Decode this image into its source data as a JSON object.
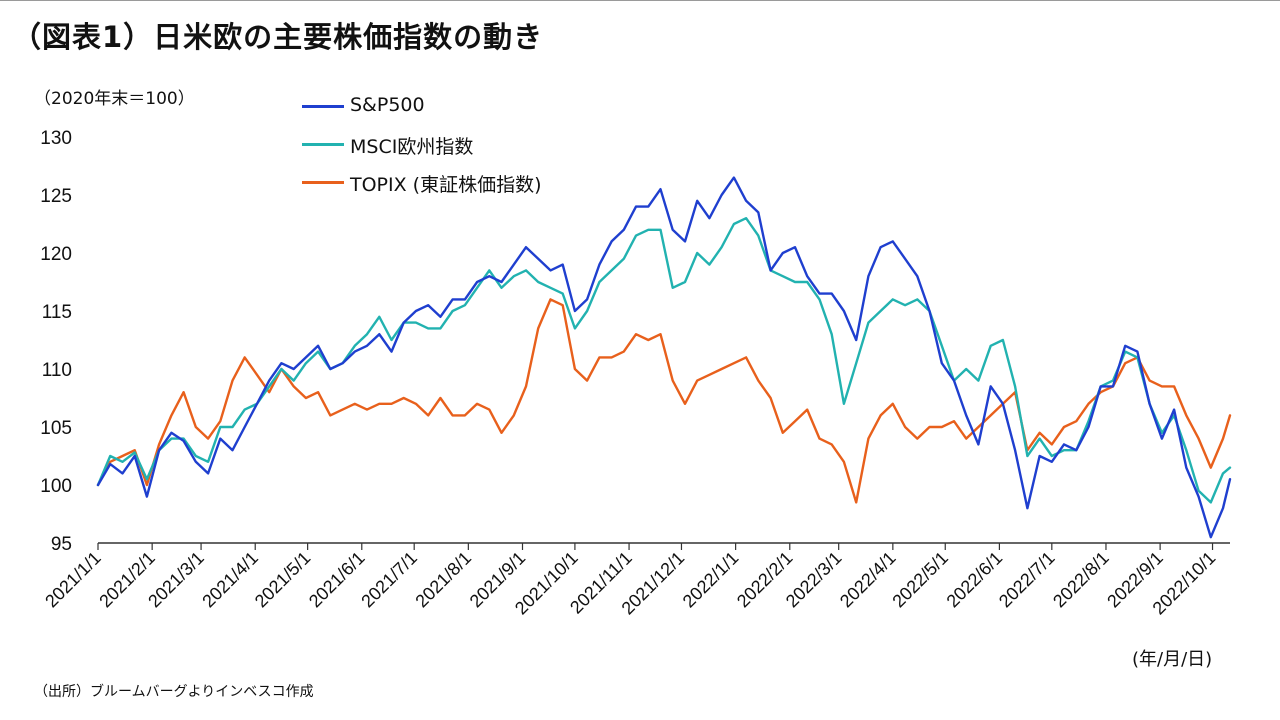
{
  "title": "（図表1）日米欧の主要株価指数の動き",
  "y_note": "（2020年末＝100）",
  "x_unit": "(年/月/日)",
  "source": "（出所）ブルームバーグよりインベスコ作成",
  "chart_data": {
    "type": "line",
    "ylim": [
      95,
      130
    ],
    "yticks": [
      95,
      100,
      105,
      110,
      115,
      120,
      125,
      130
    ],
    "x_range": [
      "2021/1/1",
      "2022/10/11"
    ],
    "xticks": [
      "2021/1/1",
      "2021/2/1",
      "2021/3/1",
      "2021/4/1",
      "2021/5/1",
      "2021/6/1",
      "2021/7/1",
      "2021/8/1",
      "2021/9/1",
      "2021/10/1",
      "2021/11/1",
      "2021/12/1",
      "2022/1/1",
      "2022/2/1",
      "2022/3/1",
      "2022/4/1",
      "2022/5/1",
      "2022/6/1",
      "2022/7/1",
      "2022/8/1",
      "2022/9/1",
      "2022/10/1"
    ],
    "legend_position": "top-left",
    "series": [
      {
        "name": "S&P500",
        "color": "#1f3fcf",
        "points": [
          [
            "2021/1/1",
            100
          ],
          [
            "2021/1/8",
            101.8
          ],
          [
            "2021/1/15",
            101
          ],
          [
            "2021/1/22",
            102.5
          ],
          [
            "2021/1/29",
            99
          ],
          [
            "2021/2/5",
            103
          ],
          [
            "2021/2/12",
            104.5
          ],
          [
            "2021/2/19",
            103.8
          ],
          [
            "2021/2/26",
            102
          ],
          [
            "2021/3/5",
            101
          ],
          [
            "2021/3/12",
            104
          ],
          [
            "2021/3/19",
            103
          ],
          [
            "2021/3/26",
            105
          ],
          [
            "2021/4/2",
            107
          ],
          [
            "2021/4/9",
            109
          ],
          [
            "2021/4/16",
            110.5
          ],
          [
            "2021/4/23",
            110
          ],
          [
            "2021/4/30",
            111
          ],
          [
            "2021/5/7",
            112
          ],
          [
            "2021/5/14",
            110
          ],
          [
            "2021/5/21",
            110.5
          ],
          [
            "2021/5/28",
            111.5
          ],
          [
            "2021/6/4",
            112
          ],
          [
            "2021/6/11",
            113
          ],
          [
            "2021/6/18",
            111.5
          ],
          [
            "2021/6/25",
            114
          ],
          [
            "2021/7/2",
            115
          ],
          [
            "2021/7/9",
            115.5
          ],
          [
            "2021/7/16",
            114.5
          ],
          [
            "2021/7/23",
            116
          ],
          [
            "2021/7/30",
            116
          ],
          [
            "2021/8/6",
            117.5
          ],
          [
            "2021/8/13",
            118
          ],
          [
            "2021/8/20",
            117.5
          ],
          [
            "2021/8/27",
            119
          ],
          [
            "2021/9/3",
            120.5
          ],
          [
            "2021/9/10",
            119.5
          ],
          [
            "2021/9/17",
            118.5
          ],
          [
            "2021/9/24",
            119
          ],
          [
            "2021/10/1",
            115
          ],
          [
            "2021/10/8",
            116
          ],
          [
            "2021/10/15",
            119
          ],
          [
            "2021/10/22",
            121
          ],
          [
            "2021/10/29",
            122
          ],
          [
            "2021/11/5",
            124
          ],
          [
            "2021/11/12",
            124
          ],
          [
            "2021/11/19",
            125.5
          ],
          [
            "2021/11/26",
            122
          ],
          [
            "2021/12/3",
            121
          ],
          [
            "2021/12/10",
            124.5
          ],
          [
            "2021/12/17",
            123
          ],
          [
            "2021/12/24",
            125
          ],
          [
            "2021/12/31",
            126.5
          ],
          [
            "2022/1/7",
            124.5
          ],
          [
            "2022/1/14",
            123.5
          ],
          [
            "2022/1/21",
            118.5
          ],
          [
            "2022/1/28",
            120
          ],
          [
            "2022/2/4",
            120.5
          ],
          [
            "2022/2/11",
            118
          ],
          [
            "2022/2/18",
            116.5
          ],
          [
            "2022/2/25",
            116.5
          ],
          [
            "2022/3/4",
            115
          ],
          [
            "2022/3/11",
            112.5
          ],
          [
            "2022/3/18",
            118
          ],
          [
            "2022/3/25",
            120.5
          ],
          [
            "2022/4/1",
            121
          ],
          [
            "2022/4/8",
            119.5
          ],
          [
            "2022/4/15",
            118
          ],
          [
            "2022/4/22",
            115
          ],
          [
            "2022/4/29",
            110.5
          ],
          [
            "2022/5/6",
            109
          ],
          [
            "2022/5/13",
            106
          ],
          [
            "2022/5/20",
            103.5
          ],
          [
            "2022/5/27",
            108.5
          ],
          [
            "2022/6/3",
            107
          ],
          [
            "2022/6/10",
            103
          ],
          [
            "2022/6/17",
            98
          ],
          [
            "2022/6/24",
            102.5
          ],
          [
            "2022/7/1",
            102
          ],
          [
            "2022/7/8",
            103.5
          ],
          [
            "2022/7/15",
            103
          ],
          [
            "2022/7/22",
            105
          ],
          [
            "2022/7/29",
            108.5
          ],
          [
            "2022/8/5",
            108.5
          ],
          [
            "2022/8/12",
            112
          ],
          [
            "2022/8/19",
            111.5
          ],
          [
            "2022/8/26",
            107
          ],
          [
            "2022/9/2",
            104
          ],
          [
            "2022/9/9",
            106.5
          ],
          [
            "2022/9/16",
            101.5
          ],
          [
            "2022/9/23",
            99
          ],
          [
            "2022/9/30",
            95.5
          ],
          [
            "2022/10/7",
            98
          ],
          [
            "2022/10/11",
            100.5
          ]
        ]
      },
      {
        "name": "MSCI欧州指数",
        "color": "#22b2b0",
        "points": [
          [
            "2021/1/1",
            100
          ],
          [
            "2021/1/8",
            102.5
          ],
          [
            "2021/1/15",
            102
          ],
          [
            "2021/1/22",
            102.8
          ],
          [
            "2021/1/29",
            100.5
          ],
          [
            "2021/2/5",
            103
          ],
          [
            "2021/2/12",
            104
          ],
          [
            "2021/2/19",
            104
          ],
          [
            "2021/2/26",
            102.5
          ],
          [
            "2021/3/5",
            102
          ],
          [
            "2021/3/12",
            105
          ],
          [
            "2021/3/19",
            105
          ],
          [
            "2021/3/26",
            106.5
          ],
          [
            "2021/4/2",
            107
          ],
          [
            "2021/4/9",
            108.5
          ],
          [
            "2021/4/16",
            110
          ],
          [
            "2021/4/23",
            109
          ],
          [
            "2021/4/30",
            110.5
          ],
          [
            "2021/5/7",
            111.5
          ],
          [
            "2021/5/14",
            110
          ],
          [
            "2021/5/21",
            110.5
          ],
          [
            "2021/5/28",
            112
          ],
          [
            "2021/6/4",
            113
          ],
          [
            "2021/6/11",
            114.5
          ],
          [
            "2021/6/18",
            112.5
          ],
          [
            "2021/6/25",
            114
          ],
          [
            "2021/7/2",
            114
          ],
          [
            "2021/7/9",
            113.5
          ],
          [
            "2021/7/16",
            113.5
          ],
          [
            "2021/7/23",
            115
          ],
          [
            "2021/7/30",
            115.5
          ],
          [
            "2021/8/6",
            117
          ],
          [
            "2021/8/13",
            118.5
          ],
          [
            "2021/8/20",
            117
          ],
          [
            "2021/8/27",
            118
          ],
          [
            "2021/9/3",
            118.5
          ],
          [
            "2021/9/10",
            117.5
          ],
          [
            "2021/9/17",
            117
          ],
          [
            "2021/9/24",
            116.5
          ],
          [
            "2021/10/1",
            113.5
          ],
          [
            "2021/10/8",
            115
          ],
          [
            "2021/10/15",
            117.5
          ],
          [
            "2021/10/22",
            118.5
          ],
          [
            "2021/10/29",
            119.5
          ],
          [
            "2021/11/5",
            121.5
          ],
          [
            "2021/11/12",
            122
          ],
          [
            "2021/11/19",
            122
          ],
          [
            "2021/11/26",
            117
          ],
          [
            "2021/12/3",
            117.5
          ],
          [
            "2021/12/10",
            120
          ],
          [
            "2021/12/17",
            119
          ],
          [
            "2021/12/24",
            120.5
          ],
          [
            "2021/12/31",
            122.5
          ],
          [
            "2022/1/7",
            123
          ],
          [
            "2022/1/14",
            121.5
          ],
          [
            "2022/1/21",
            118.5
          ],
          [
            "2022/1/28",
            118
          ],
          [
            "2022/2/4",
            117.5
          ],
          [
            "2022/2/11",
            117.5
          ],
          [
            "2022/2/18",
            116
          ],
          [
            "2022/2/25",
            113
          ],
          [
            "2022/3/4",
            107
          ],
          [
            "2022/3/11",
            110.5
          ],
          [
            "2022/3/18",
            114
          ],
          [
            "2022/3/25",
            115
          ],
          [
            "2022/4/1",
            116
          ],
          [
            "2022/4/8",
            115.5
          ],
          [
            "2022/4/15",
            116
          ],
          [
            "2022/4/22",
            115
          ],
          [
            "2022/4/29",
            112
          ],
          [
            "2022/5/6",
            109
          ],
          [
            "2022/5/13",
            110
          ],
          [
            "2022/5/20",
            109
          ],
          [
            "2022/5/27",
            112
          ],
          [
            "2022/6/3",
            112.5
          ],
          [
            "2022/6/10",
            108.5
          ],
          [
            "2022/6/17",
            102.5
          ],
          [
            "2022/6/24",
            104
          ],
          [
            "2022/7/1",
            102.5
          ],
          [
            "2022/7/8",
            103
          ],
          [
            "2022/7/15",
            103
          ],
          [
            "2022/7/22",
            105.5
          ],
          [
            "2022/7/29",
            108.5
          ],
          [
            "2022/8/5",
            109
          ],
          [
            "2022/8/12",
            111.5
          ],
          [
            "2022/8/19",
            111
          ],
          [
            "2022/8/26",
            107
          ],
          [
            "2022/9/2",
            104.5
          ],
          [
            "2022/9/9",
            106
          ],
          [
            "2022/9/16",
            103
          ],
          [
            "2022/9/23",
            99.5
          ],
          [
            "2022/9/30",
            98.5
          ],
          [
            "2022/10/7",
            101
          ],
          [
            "2022/10/11",
            101.5
          ]
        ]
      },
      {
        "name": "TOPIX (東証株価指数)",
        "color": "#e8601c",
        "points": [
          [
            "2021/1/1",
            100
          ],
          [
            "2021/1/8",
            102
          ],
          [
            "2021/1/15",
            102.5
          ],
          [
            "2021/1/22",
            103
          ],
          [
            "2021/1/29",
            100
          ],
          [
            "2021/2/5",
            103.5
          ],
          [
            "2021/2/12",
            106
          ],
          [
            "2021/2/19",
            108
          ],
          [
            "2021/2/26",
            105
          ],
          [
            "2021/3/5",
            104
          ],
          [
            "2021/3/12",
            105.5
          ],
          [
            "2021/3/19",
            109
          ],
          [
            "2021/3/26",
            111
          ],
          [
            "2021/4/2",
            109.5
          ],
          [
            "2021/4/9",
            108
          ],
          [
            "2021/4/16",
            110
          ],
          [
            "2021/4/23",
            108.5
          ],
          [
            "2021/4/30",
            107.5
          ],
          [
            "2021/5/7",
            108
          ],
          [
            "2021/5/14",
            106
          ],
          [
            "2021/5/21",
            106.5
          ],
          [
            "2021/5/28",
            107
          ],
          [
            "2021/6/4",
            106.5
          ],
          [
            "2021/6/11",
            107
          ],
          [
            "2021/6/18",
            107
          ],
          [
            "2021/6/25",
            107.5
          ],
          [
            "2021/7/2",
            107
          ],
          [
            "2021/7/9",
            106
          ],
          [
            "2021/7/16",
            107.5
          ],
          [
            "2021/7/23",
            106
          ],
          [
            "2021/7/30",
            106
          ],
          [
            "2021/8/6",
            107
          ],
          [
            "2021/8/13",
            106.5
          ],
          [
            "2021/8/20",
            104.5
          ],
          [
            "2021/8/27",
            106
          ],
          [
            "2021/9/3",
            108.5
          ],
          [
            "2021/9/10",
            113.5
          ],
          [
            "2021/9/17",
            116
          ],
          [
            "2021/9/24",
            115.5
          ],
          [
            "2021/10/1",
            110
          ],
          [
            "2021/10/8",
            109
          ],
          [
            "2021/10/15",
            111
          ],
          [
            "2021/10/22",
            111
          ],
          [
            "2021/10/29",
            111.5
          ],
          [
            "2021/11/5",
            113
          ],
          [
            "2021/11/12",
            112.5
          ],
          [
            "2021/11/19",
            113
          ],
          [
            "2021/11/26",
            109
          ],
          [
            "2021/12/3",
            107
          ],
          [
            "2021/12/10",
            109
          ],
          [
            "2021/12/17",
            109.5
          ],
          [
            "2021/12/24",
            110
          ],
          [
            "2021/12/31",
            110.5
          ],
          [
            "2022/1/7",
            111
          ],
          [
            "2022/1/14",
            109
          ],
          [
            "2022/1/21",
            107.5
          ],
          [
            "2022/1/28",
            104.5
          ],
          [
            "2022/2/4",
            105.5
          ],
          [
            "2022/2/11",
            106.5
          ],
          [
            "2022/2/18",
            104
          ],
          [
            "2022/2/25",
            103.5
          ],
          [
            "2022/3/4",
            102
          ],
          [
            "2022/3/11",
            98.5
          ],
          [
            "2022/3/18",
            104
          ],
          [
            "2022/3/25",
            106
          ],
          [
            "2022/4/1",
            107
          ],
          [
            "2022/4/8",
            105
          ],
          [
            "2022/4/15",
            104
          ],
          [
            "2022/4/22",
            105
          ],
          [
            "2022/4/29",
            105
          ],
          [
            "2022/5/6",
            105.5
          ],
          [
            "2022/5/13",
            104
          ],
          [
            "2022/5/20",
            105
          ],
          [
            "2022/5/27",
            106
          ],
          [
            "2022/6/3",
            107
          ],
          [
            "2022/6/10",
            108
          ],
          [
            "2022/6/17",
            103
          ],
          [
            "2022/6/24",
            104.5
          ],
          [
            "2022/7/1",
            103.5
          ],
          [
            "2022/7/8",
            105
          ],
          [
            "2022/7/15",
            105.5
          ],
          [
            "2022/7/22",
            107
          ],
          [
            "2022/7/29",
            108
          ],
          [
            "2022/8/5",
            108.5
          ],
          [
            "2022/8/12",
            110.5
          ],
          [
            "2022/8/19",
            111
          ],
          [
            "2022/8/26",
            109
          ],
          [
            "2022/9/2",
            108.5
          ],
          [
            "2022/9/9",
            108.5
          ],
          [
            "2022/9/16",
            106
          ],
          [
            "2022/9/23",
            104
          ],
          [
            "2022/9/30",
            101.5
          ],
          [
            "2022/10/7",
            104
          ],
          [
            "2022/10/11",
            106
          ]
        ]
      }
    ]
  }
}
